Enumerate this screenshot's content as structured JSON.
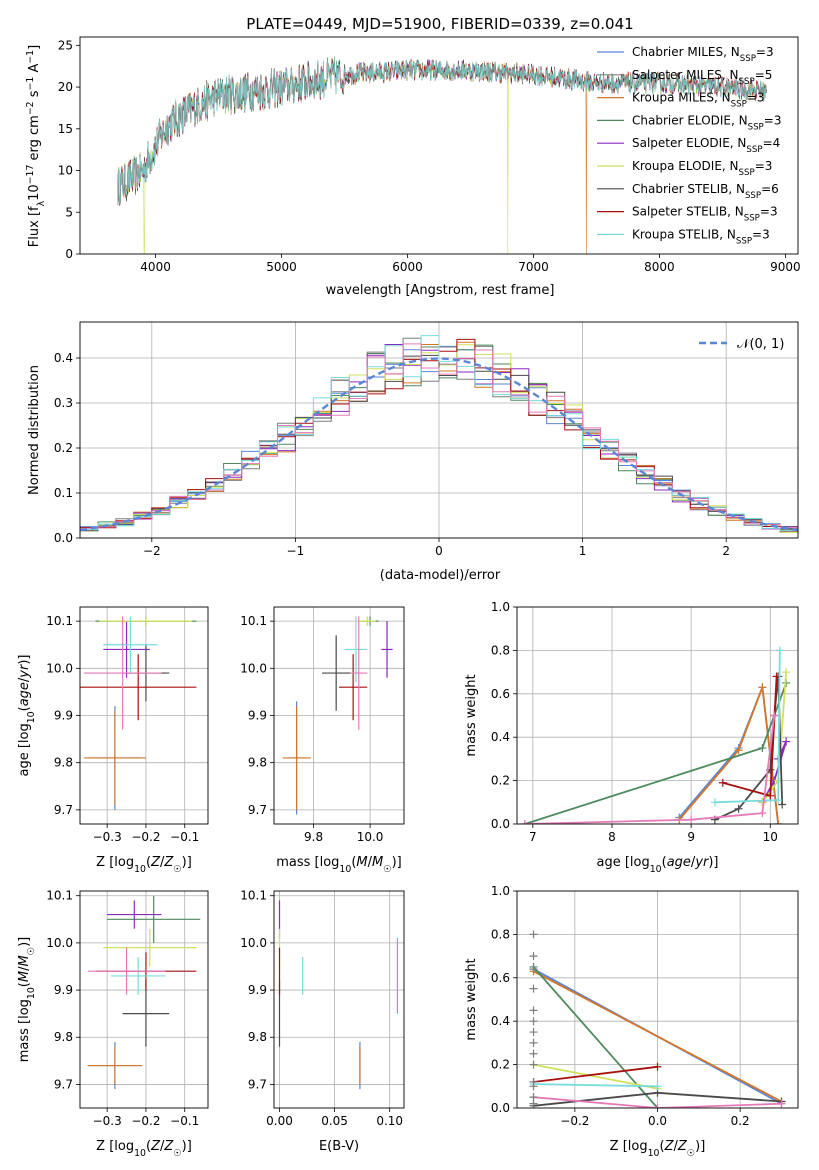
{
  "figure": {
    "title": "PLATE=0449, MJD=51900, FIBERID=0339, z=0.041"
  },
  "colors": {
    "chabrier_miles": "#5b86d6",
    "salpeter_miles": "#7f7f7f",
    "kroupa_miles": "#d2772a",
    "chabrier_elodie": "#4e8a5e",
    "salpeter_elodie": "#8a2bc0",
    "kroupa_elodie": "#cfe05a",
    "chabrier_stelib": "#4a4a4a",
    "salpeter_stelib": "#a81010",
    "kroupa_stelib": "#78dcdc",
    "pink": "#e57ab8"
  },
  "chart_data": [
    {
      "id": "spectrum",
      "type": "line",
      "xlabel": "wavelength [Angstrom, rest frame]",
      "ylabel": "Flux [f_λ 10^-17 erg cm^-2 s^-1 A^-1]",
      "xlim": [
        3400,
        9100
      ],
      "ylim": [
        0,
        26
      ],
      "xticks": [
        4000,
        5000,
        6000,
        7000,
        8000,
        9000
      ],
      "yticks": [
        0,
        5,
        10,
        15,
        20,
        25
      ],
      "legend": "top-right",
      "series": [
        {
          "name": "Chabrier MILES, N_SSP=3",
          "label_pre": "Chabrier MILES, N",
          "label_sub": "SSP",
          "label_post": "=3",
          "color": "#5b86d6"
        },
        {
          "name": "Salpeter MILES, N_SSP=5",
          "label_pre": "Salpeter MILES, N",
          "label_sub": "SSP",
          "label_post": "=5",
          "color": "#7f7f7f"
        },
        {
          "name": "Kroupa MILES, N_SSP=3",
          "label_pre": "Kroupa MILES, N",
          "label_sub": "SSP",
          "label_post": "=3",
          "color": "#d2772a"
        },
        {
          "name": "Chabrier ELODIE, N_SSP=3",
          "label_pre": "Chabrier ELODIE, N",
          "label_sub": "SSP",
          "label_post": "=3",
          "color": "#4e8a5e"
        },
        {
          "name": "Salpeter ELODIE, N_SSP=4",
          "label_pre": "Salpeter ELODIE, N",
          "label_sub": "SSP",
          "label_post": "=4",
          "color": "#8a2bc0"
        },
        {
          "name": "Kroupa ELODIE, N_SSP=3",
          "label_pre": "Kroupa ELODIE, N",
          "label_sub": "SSP",
          "label_post": "=3",
          "color": "#cfe05a"
        },
        {
          "name": "Chabrier STELIB, N_SSP=6",
          "label_pre": "Chabrier STELIB, N",
          "label_sub": "SSP",
          "label_post": "=6",
          "color": "#4a4a4a"
        },
        {
          "name": "Salpeter STELIB, N_SSP=3",
          "label_pre": "Salpeter STELIB, N",
          "label_sub": "SSP",
          "label_post": "=3",
          "color": "#a81010"
        },
        {
          "name": "Kroupa STELIB, N_SSP=3",
          "label_pre": "Kroupa STELIB, N",
          "label_sub": "SSP",
          "label_post": "=3",
          "color": "#78dcdc"
        }
      ],
      "continuum": {
        "x": [
          3700,
          3800,
          3900,
          4000,
          4100,
          4300,
          4500,
          4800,
          5000,
          5500,
          6000,
          6500,
          7000,
          7500,
          8000,
          8500,
          8850
        ],
        "y": [
          8,
          9,
          10,
          13,
          15.5,
          17.5,
          19,
          19.5,
          20,
          21.5,
          22,
          22,
          21.5,
          20.5,
          20.5,
          20,
          19.5
        ]
      },
      "drops": [
        {
          "x": 3910,
          "color": "#cfe05a"
        },
        {
          "x": 6795,
          "color": "#cfe05a"
        },
        {
          "x": 7420,
          "color": "#d2772a"
        }
      ]
    },
    {
      "id": "residuals",
      "type": "histogram",
      "xlabel": "(data-model)/error",
      "ylabel": "Normed distribution",
      "xlim": [
        -2.5,
        2.5
      ],
      "ylim": [
        0,
        0.48
      ],
      "xticks": [
        -2,
        -1,
        0,
        1,
        2
      ],
      "yticks": [
        0.0,
        0.1,
        0.2,
        0.3,
        0.4
      ],
      "legend_label": "𝒩(0, 1)",
      "bins": 40,
      "series_colors": [
        "#5b86d6",
        "#7f7f7f",
        "#d2772a",
        "#4e8a5e",
        "#8a2bc0",
        "#cfe05a",
        "#4a4a4a",
        "#a81010",
        "#78dcdc",
        "#e57ab8"
      ],
      "grid": true
    },
    {
      "id": "age_vs_Z",
      "type": "errorbar",
      "xlabel": "Z [log10(Z/Z☉)]",
      "ylabel": "age [log10(age/yr)]",
      "xlim": [
        -0.37,
        -0.04
      ],
      "ylim": [
        9.67,
        10.13
      ],
      "xticks": [
        -0.3,
        -0.2,
        -0.1
      ],
      "yticks": [
        9.7,
        9.8,
        9.9,
        10.0,
        10.1
      ],
      "grid": true,
      "points": [
        {
          "x": -0.28,
          "xerr": 0.07,
          "y": 9.81,
          "yerr": 0.11,
          "color": "#5b86d6"
        },
        {
          "x": -0.28,
          "xerr": 0.08,
          "y": 9.81,
          "yerr": 0.1,
          "color": "#d2772a"
        },
        {
          "x": -0.2,
          "xerr": 0.13,
          "y": 10.1,
          "yerr": 0.01,
          "color": "#4e8a5e"
        },
        {
          "x": -0.25,
          "xerr": 0.06,
          "y": 10.04,
          "yerr": 0.06,
          "color": "#8a2bc0"
        },
        {
          "x": -0.2,
          "xerr": 0.12,
          "y": 10.1,
          "yerr": 0.01,
          "color": "#cfe05a"
        },
        {
          "x": -0.2,
          "xerr": 0.06,
          "y": 9.99,
          "yerr": 0.06,
          "color": "#4a4a4a"
        },
        {
          "x": -0.22,
          "xerr": 0.15,
          "y": 9.96,
          "yerr": 0.07,
          "color": "#a81010"
        },
        {
          "x": -0.24,
          "xerr": 0.07,
          "y": 10.05,
          "yerr": 0.06,
          "color": "#78dcdc"
        },
        {
          "x": -0.26,
          "xerr": 0.1,
          "y": 9.99,
          "yerr": 0.12,
          "color": "#e57ab8"
        }
      ]
    },
    {
      "id": "age_vs_mass",
      "type": "errorbar",
      "xlabel": "mass [log10(M/M☉)]",
      "ylabel": "",
      "xlim": [
        9.66,
        10.12
      ],
      "ylim": [
        9.67,
        10.13
      ],
      "xticks": [
        9.8,
        10.0
      ],
      "yticks": [
        9.7,
        9.8,
        9.9,
        10.0,
        10.1
      ],
      "grid": true,
      "points": [
        {
          "x": 9.74,
          "xerr": 0.03,
          "y": 9.81,
          "yerr": 0.12,
          "color": "#5b86d6"
        },
        {
          "x": 9.74,
          "xerr": 0.05,
          "y": 9.81,
          "yerr": 0.11,
          "color": "#d2772a"
        },
        {
          "x": 10.0,
          "xerr": 0.03,
          "y": 10.1,
          "yerr": 0.01,
          "color": "#4e8a5e"
        },
        {
          "x": 10.06,
          "xerr": 0.02,
          "y": 10.04,
          "yerr": 0.06,
          "color": "#8a2bc0"
        },
        {
          "x": 9.99,
          "xerr": 0.03,
          "y": 10.1,
          "yerr": 0.01,
          "color": "#cfe05a"
        },
        {
          "x": 9.88,
          "xerr": 0.05,
          "y": 9.99,
          "yerr": 0.08,
          "color": "#4a4a4a"
        },
        {
          "x": 9.94,
          "xerr": 0.05,
          "y": 9.96,
          "yerr": 0.07,
          "color": "#a81010"
        },
        {
          "x": 9.95,
          "xerr": 0.04,
          "y": 10.04,
          "yerr": 0.07,
          "color": "#78dcdc"
        },
        {
          "x": 9.96,
          "xerr": 0.03,
          "y": 9.99,
          "yerr": 0.12,
          "color": "#e57ab8"
        }
      ]
    },
    {
      "id": "weight_vs_age",
      "type": "line",
      "xlabel": "age [log10(age/yr)]",
      "ylabel": "mass weight",
      "xlim": [
        6.8,
        10.35
      ],
      "ylim": [
        0,
        1
      ],
      "xticks": [
        7,
        8,
        9,
        10
      ],
      "yticks": [
        0.0,
        0.2,
        0.4,
        0.6,
        0.8,
        1.0
      ],
      "grid": true,
      "series": [
        {
          "color": "#5b86d6",
          "x": [
            8.85,
            9.6,
            9.9,
            10.1
          ],
          "y": [
            0.03,
            0.35,
            0.63,
            0.0
          ]
        },
        {
          "color": "#d2772a",
          "x": [
            8.85,
            9.6,
            9.9,
            10.1
          ],
          "y": [
            0.02,
            0.34,
            0.63,
            0.0
          ]
        },
        {
          "color": "#4e8a5e",
          "x": [
            6.9,
            9.9,
            10.2
          ],
          "y": [
            0.0,
            0.35,
            0.65
          ]
        },
        {
          "color": "#8a2bc0",
          "x": [
            9.9,
            10.05,
            10.2,
            10.1
          ],
          "y": [
            0.1,
            0.2,
            0.38,
            0.3
          ]
        },
        {
          "color": "#cfe05a",
          "x": [
            9.9,
            10.1,
            10.2
          ],
          "y": [
            0.1,
            0.2,
            0.7
          ]
        },
        {
          "color": "#4a4a4a",
          "x": [
            9.3,
            9.6,
            10.0,
            10.05,
            10.1,
            10.15
          ],
          "y": [
            0.02,
            0.07,
            0.25,
            0.5,
            0.68,
            0.09
          ]
        },
        {
          "color": "#a81010",
          "x": [
            9.4,
            10.0,
            10.08
          ],
          "y": [
            0.19,
            0.13,
            0.68
          ]
        },
        {
          "color": "#78dcdc",
          "x": [
            9.3,
            10.1,
            10.12
          ],
          "y": [
            0.1,
            0.11,
            0.8
          ]
        },
        {
          "color": "#e57ab8",
          "x": [
            6.9,
            9.0,
            9.9,
            10.05
          ],
          "y": [
            0.0,
            0.02,
            0.05,
            0.5
          ]
        }
      ]
    },
    {
      "id": "mass_vs_Z",
      "type": "errorbar",
      "xlabel": "Z [log10(Z/Z☉)]",
      "ylabel": "mass [log10(M/M☉)]",
      "xlim": [
        -0.37,
        -0.04
      ],
      "ylim": [
        9.65,
        10.11
      ],
      "xticks": [
        -0.3,
        -0.2,
        -0.1
      ],
      "yticks": [
        9.7,
        9.8,
        9.9,
        10.0,
        10.1
      ],
      "grid": true,
      "points": [
        {
          "x": -0.28,
          "xerr": 0.07,
          "y": 9.74,
          "yerr": 0.05,
          "color": "#5b86d6"
        },
        {
          "x": -0.28,
          "xerr": 0.07,
          "y": 9.74,
          "yerr": 0.04,
          "color": "#d2772a"
        },
        {
          "x": -0.18,
          "xerr": 0.12,
          "y": 10.05,
          "yerr": 0.05,
          "color": "#4e8a5e"
        },
        {
          "x": -0.23,
          "xerr": 0.07,
          "y": 10.06,
          "yerr": 0.03,
          "color": "#8a2bc0"
        },
        {
          "x": -0.19,
          "xerr": 0.12,
          "y": 9.99,
          "yerr": 0.04,
          "color": "#cfe05a"
        },
        {
          "x": -0.2,
          "xerr": 0.06,
          "y": 9.85,
          "yerr": 0.07,
          "color": "#4a4a4a"
        },
        {
          "x": -0.2,
          "xerr": 0.13,
          "y": 9.94,
          "yerr": 0.04,
          "color": "#a81010"
        },
        {
          "x": -0.22,
          "xerr": 0.07,
          "y": 9.93,
          "yerr": 0.04,
          "color": "#78dcdc"
        },
        {
          "x": -0.25,
          "xerr": 0.1,
          "y": 9.94,
          "yerr": 0.05,
          "color": "#e57ab8"
        }
      ]
    },
    {
      "id": "mass_vs_ebv",
      "type": "errorbar",
      "xlabel": "E(B-V)",
      "ylabel": "",
      "xlim": [
        -0.005,
        0.113
      ],
      "ylim": [
        9.65,
        10.11
      ],
      "xticks": [
        0.0,
        0.05,
        0.1
      ],
      "xticklabels": [
        "0.00",
        "0.05",
        "0.10"
      ],
      "yticks": [
        9.7,
        9.8,
        9.9,
        10.0,
        10.1
      ],
      "grid": true,
      "points": [
        {
          "x": 0.073,
          "xerr": 0.0,
          "y": 9.74,
          "yerr": 0.05,
          "color": "#5b86d6"
        },
        {
          "x": 0.073,
          "xerr": 0.0,
          "y": 9.74,
          "yerr": 0.04,
          "color": "#d2772a"
        },
        {
          "x": 0.0,
          "xerr": 0.0,
          "y": 10.05,
          "yerr": 0.04,
          "color": "#8a2bc0"
        },
        {
          "x": 0.0,
          "xerr": 0.0,
          "y": 9.99,
          "yerr": 0.04,
          "color": "#cfe05a"
        },
        {
          "x": 0.0,
          "xerr": 0.0,
          "y": 9.85,
          "yerr": 0.07,
          "color": "#4a4a4a"
        },
        {
          "x": 0.0,
          "xerr": 0.0,
          "y": 9.94,
          "yerr": 0.05,
          "color": "#a81010"
        },
        {
          "x": 0.021,
          "xerr": 0.0,
          "y": 9.93,
          "yerr": 0.04,
          "color": "#78dcdc"
        },
        {
          "x": 0.107,
          "xerr": 0.0,
          "y": 9.93,
          "yerr": 0.08,
          "color": "#e57ab8"
        }
      ]
    },
    {
      "id": "weight_vs_Z",
      "type": "line",
      "xlabel": "Z [log10(Z/Z☉)]",
      "ylabel": "mass weight",
      "xlim": [
        -0.34,
        0.34
      ],
      "ylim": [
        0,
        1
      ],
      "xticks": [
        -0.2,
        0.0,
        0.2
      ],
      "yticks": [
        0.0,
        0.2,
        0.4,
        0.6,
        0.8,
        1.0
      ],
      "grid": true,
      "series": [
        {
          "color": "#5b86d6",
          "x": [
            -0.3,
            0.3
          ],
          "y": [
            0.64,
            0.02
          ]
        },
        {
          "color": "#d2772a",
          "x": [
            -0.3,
            0.3
          ],
          "y": [
            0.63,
            0.03
          ]
        },
        {
          "color": "#4e8a5e",
          "x": [
            -0.3,
            0.0
          ],
          "y": [
            0.65,
            0.0
          ]
        },
        {
          "color": "#cfe05a",
          "x": [
            -0.3,
            0.0
          ],
          "y": [
            0.2,
            0.09
          ]
        },
        {
          "color": "#4a4a4a",
          "x": [
            -0.3,
            0.0,
            0.3
          ],
          "y": [
            0.01,
            0.07,
            0.03
          ]
        },
        {
          "color": "#a81010",
          "x": [
            -0.3,
            0.0
          ],
          "y": [
            0.12,
            0.19
          ]
        },
        {
          "color": "#78dcdc",
          "x": [
            -0.3,
            0.0
          ],
          "y": [
            0.11,
            0.1
          ]
        },
        {
          "color": "#e57ab8",
          "x": [
            -0.3,
            0.0,
            0.3
          ],
          "y": [
            0.05,
            0.0,
            0.02
          ]
        }
      ],
      "vertical_marks": {
        "x": -0.3,
        "y": [
          0.02,
          0.05,
          0.1,
          0.12,
          0.2,
          0.25,
          0.3,
          0.35,
          0.4,
          0.45,
          0.55,
          0.64,
          0.7,
          0.8
        ]
      }
    }
  ]
}
